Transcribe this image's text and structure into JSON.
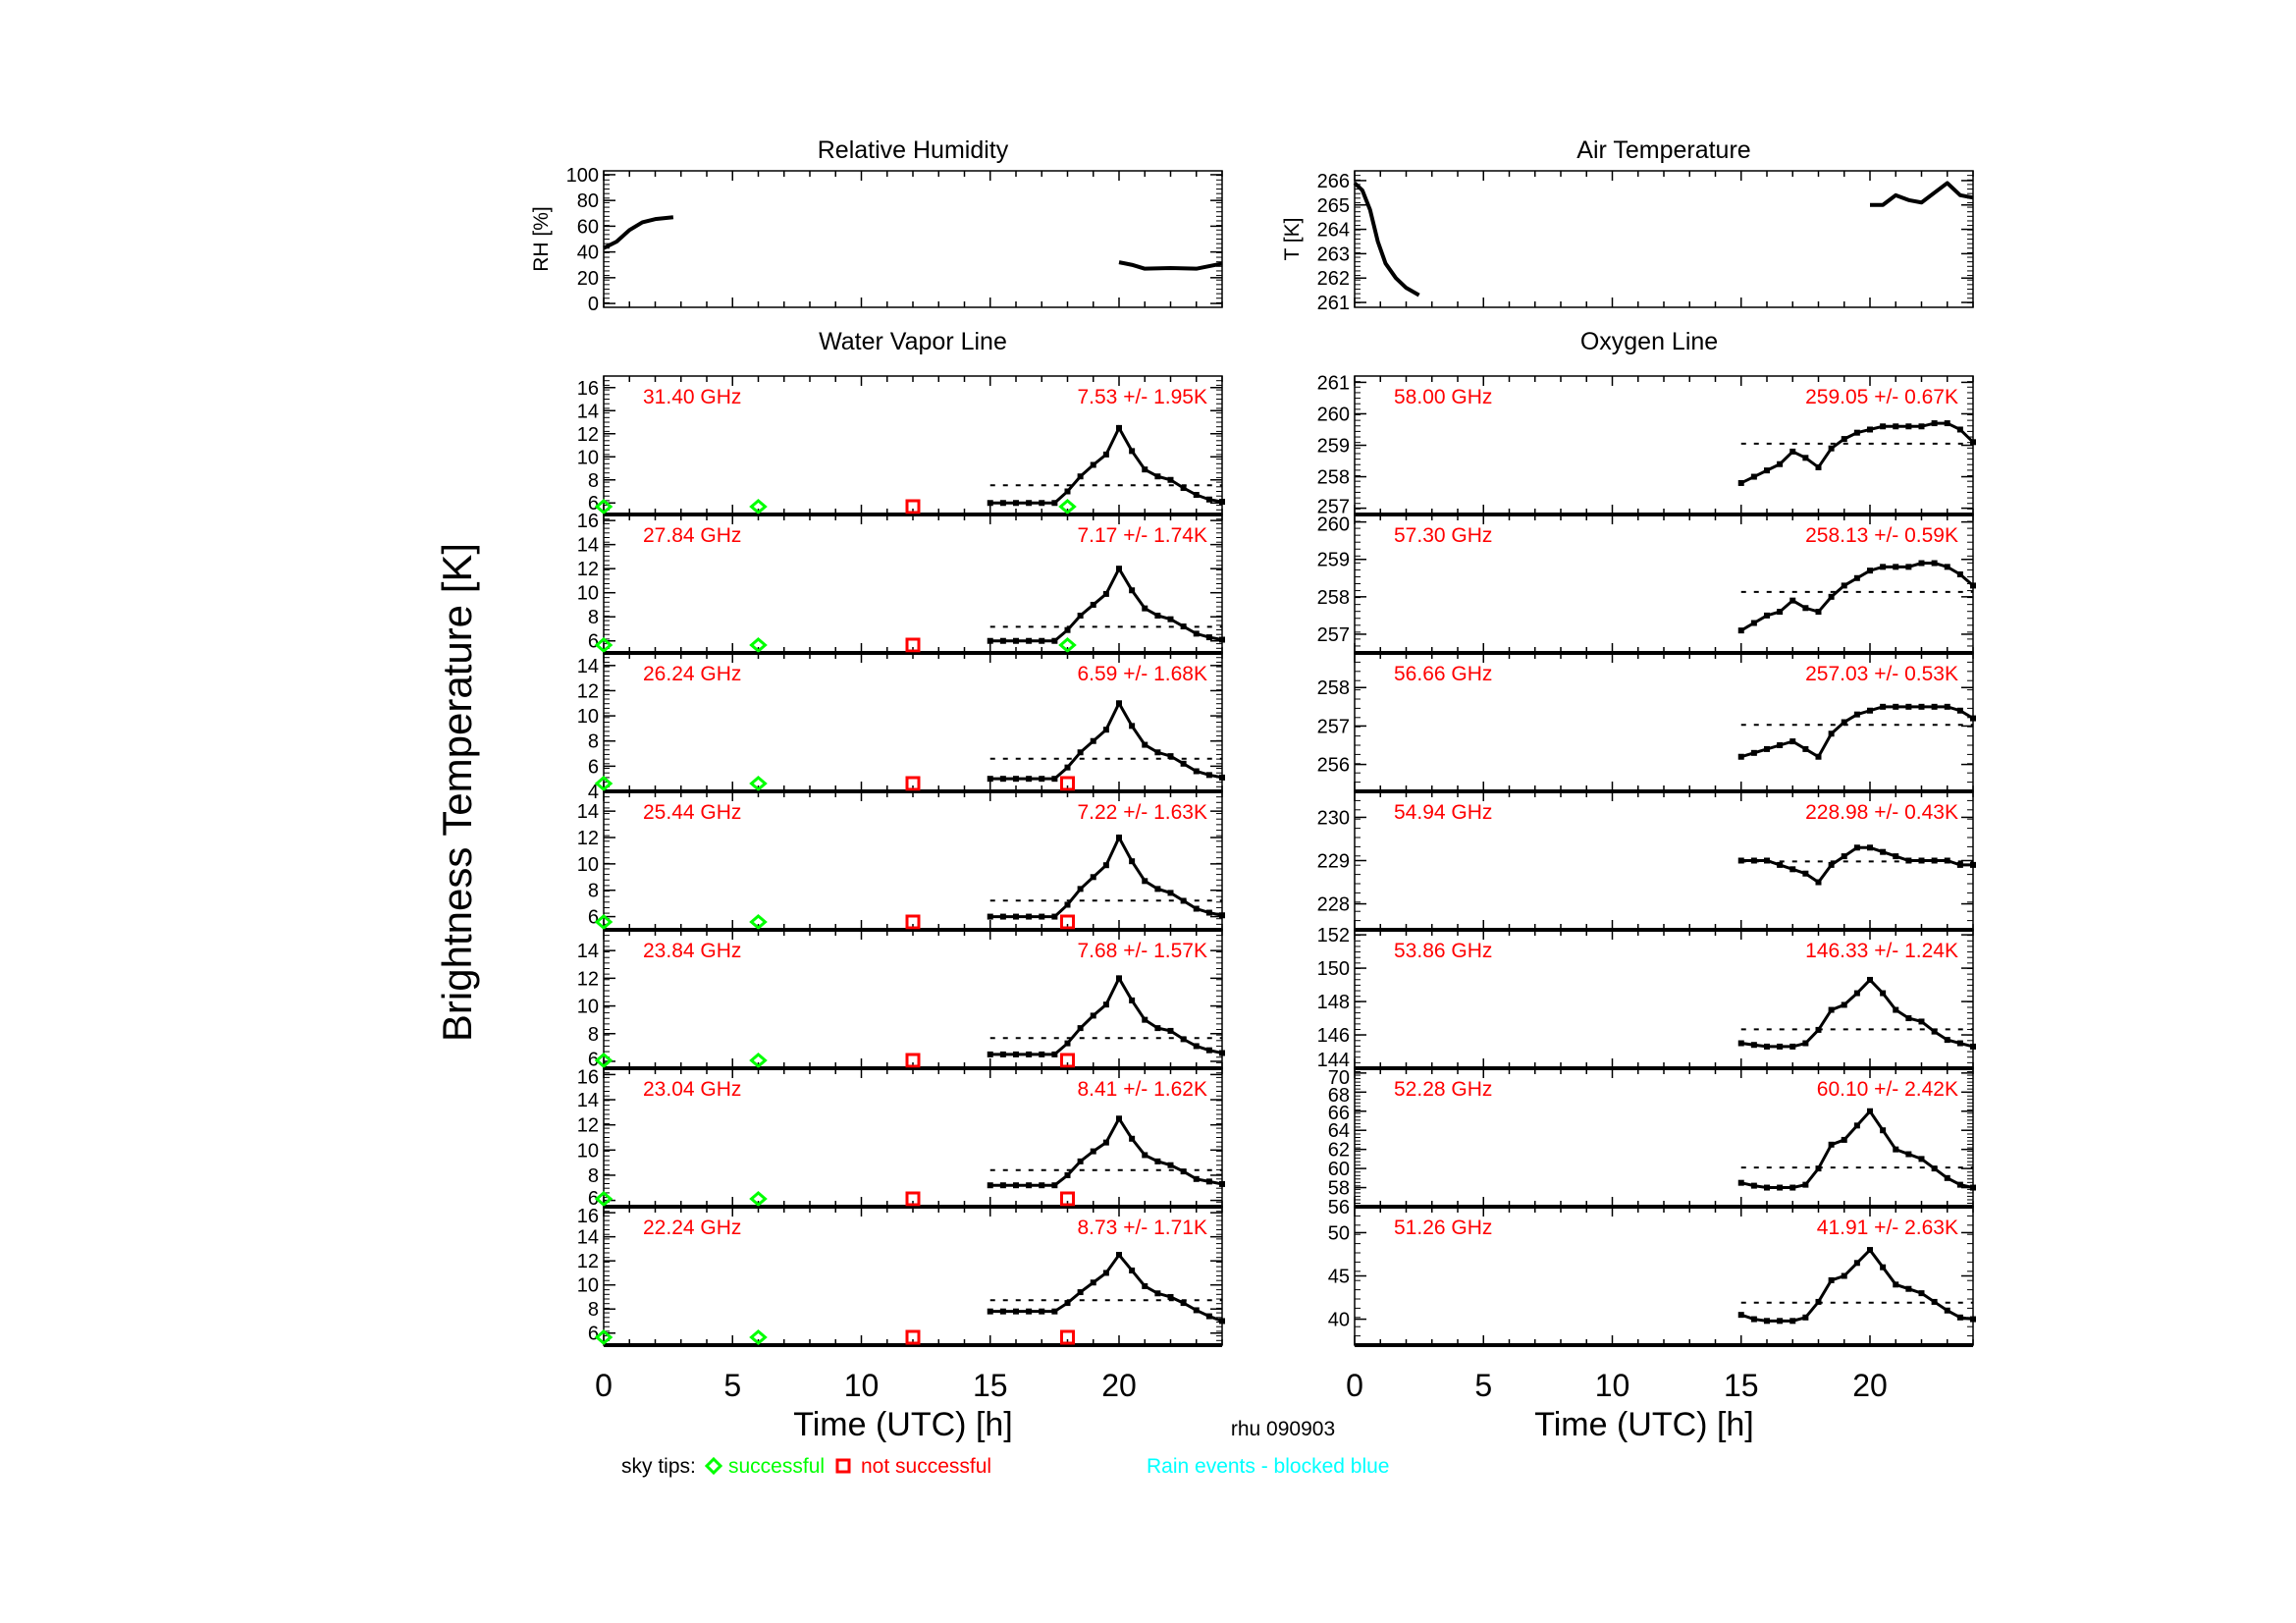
{
  "colors": {
    "axis": "#000000",
    "label": "#ff0000",
    "success": "#00ff00",
    "fail": "#ff0000",
    "rain": "#00ffff"
  },
  "y_main_label": "Brightness Temperature [K]",
  "station": "rhu 090903",
  "legend": {
    "prefix": "sky tips:",
    "success": "successful",
    "fail": "not successful",
    "rain": "Rain events - blocked blue"
  },
  "chart_data": [
    {
      "type": "line",
      "title": "Relative Humidity",
      "ylabel": "RH [%]",
      "ylim": [
        -3,
        103
      ],
      "xlim": [
        0,
        24
      ],
      "yticks": [
        "0",
        "20",
        "40",
        "60",
        "80",
        "100"
      ],
      "segments": [
        [
          [
            0,
            43
          ],
          [
            0.5,
            48
          ],
          [
            1,
            57
          ],
          [
            1.5,
            63
          ],
          [
            2,
            65.5
          ],
          [
            2.7,
            67
          ]
        ],
        [
          [
            20,
            32
          ],
          [
            20.5,
            30
          ],
          [
            21,
            27
          ],
          [
            22,
            27.5
          ],
          [
            23,
            27
          ],
          [
            24,
            31
          ]
        ]
      ]
    },
    {
      "type": "line",
      "title": "Air Temperature",
      "ylabel": "T [K]",
      "ylim": [
        260.8,
        266.4
      ],
      "xlim": [
        0,
        24
      ],
      "yticks": [
        "261",
        "262",
        "263",
        "264",
        "265",
        "266"
      ],
      "segments": [
        [
          [
            0,
            265.9
          ],
          [
            0.3,
            265.6
          ],
          [
            0.6,
            264.8
          ],
          [
            0.9,
            263.5
          ],
          [
            1.2,
            262.6
          ],
          [
            1.6,
            262
          ],
          [
            2,
            261.6
          ],
          [
            2.5,
            261.3
          ]
        ],
        [
          [
            20,
            265
          ],
          [
            20.5,
            265
          ],
          [
            21,
            265.4
          ],
          [
            21.5,
            265.2
          ],
          [
            22,
            265.1
          ],
          [
            22.5,
            265.5
          ],
          [
            23,
            265.9
          ],
          [
            23.5,
            265.4
          ],
          [
            24,
            265.3
          ]
        ]
      ]
    },
    {
      "type": "scatter",
      "title": "Water Vapor Line",
      "xlabel": "Time (UTC) [h]",
      "xlim": [
        0,
        24
      ],
      "xticks": [
        "0",
        "5",
        "10",
        "15",
        "20"
      ],
      "x": [
        15,
        15.5,
        16,
        16.5,
        17,
        17.5,
        18,
        18.5,
        19,
        19.5,
        20,
        20.5,
        21,
        21.5,
        22,
        22.5,
        23,
        23.5,
        24
      ],
      "panels": [
        {
          "freq": "31.40 GHz",
          "stat": "7.53 +/-  1.95K",
          "mean": 7.53,
          "ylim": [
            5,
            17
          ],
          "yticks": [
            "6",
            "8",
            "10",
            "12",
            "14",
            "16"
          ],
          "y": [
            6,
            6,
            6,
            6,
            6,
            6,
            7,
            8.3,
            9.3,
            10.2,
            12.5,
            10.5,
            8.9,
            8.3,
            8,
            7.3,
            6.7,
            6.3,
            6.1
          ],
          "tips": [
            [
              0,
              "ok"
            ],
            [
              6,
              "ok"
            ],
            [
              12,
              "fail"
            ],
            [
              18,
              "ok"
            ]
          ]
        },
        {
          "freq": "27.84 GHz",
          "stat": "7.17 +/-  1.74K",
          "mean": 7.17,
          "ylim": [
            5,
            16.5
          ],
          "yticks": [
            "6",
            "8",
            "10",
            "12",
            "14",
            "16"
          ],
          "y": [
            6,
            6,
            6,
            6,
            6,
            6,
            6.9,
            8.1,
            9,
            9.9,
            12,
            10.2,
            8.7,
            8.1,
            7.8,
            7.2,
            6.6,
            6.3,
            6.1
          ],
          "tips": [
            [
              0,
              "ok"
            ],
            [
              6,
              "ok"
            ],
            [
              12,
              "fail"
            ],
            [
              18,
              "ok"
            ]
          ]
        },
        {
          "freq": "26.24 GHz",
          "stat": "6.59 +/-  1.68K",
          "mean": 6.59,
          "ylim": [
            4,
            15
          ],
          "yticks": [
            "4",
            "6",
            "8",
            "10",
            "12",
            "14"
          ],
          "y": [
            5,
            5,
            5,
            5,
            5,
            5,
            5.9,
            7.1,
            8,
            8.9,
            11,
            9.2,
            7.7,
            7.1,
            6.8,
            6.2,
            5.6,
            5.3,
            5.1
          ],
          "tips": [
            [
              0,
              "ok"
            ],
            [
              6,
              "ok"
            ],
            [
              12,
              "fail"
            ],
            [
              18,
              "fail"
            ]
          ]
        },
        {
          "freq": "25.44 GHz",
          "stat": "7.22 +/-  1.63K",
          "mean": 7.22,
          "ylim": [
            5,
            15.5
          ],
          "yticks": [
            "6",
            "8",
            "10",
            "12",
            "14"
          ],
          "y": [
            6,
            6,
            6,
            6,
            6,
            6,
            6.9,
            8.1,
            9,
            9.9,
            12,
            10.2,
            8.7,
            8.1,
            7.8,
            7.2,
            6.6,
            6.3,
            6.1
          ],
          "tips": [
            [
              0,
              "ok"
            ],
            [
              6,
              "ok"
            ],
            [
              12,
              "fail"
            ],
            [
              18,
              "fail"
            ]
          ]
        },
        {
          "freq": "23.84 GHz",
          "stat": "7.68 +/-  1.57K",
          "mean": 7.68,
          "ylim": [
            5.5,
            15.5
          ],
          "yticks": [
            "6",
            "8",
            "10",
            "12",
            "14"
          ],
          "y": [
            6.5,
            6.5,
            6.5,
            6.5,
            6.5,
            6.5,
            7.3,
            8.4,
            9.3,
            10.1,
            12,
            10.4,
            9,
            8.4,
            8.2,
            7.6,
            7.1,
            6.8,
            6.6
          ],
          "tips": [
            [
              0,
              "ok"
            ],
            [
              6,
              "ok"
            ],
            [
              12,
              "fail"
            ],
            [
              18,
              "fail"
            ]
          ]
        },
        {
          "freq": "23.04 GHz",
          "stat": "8.41 +/-  1.62K",
          "mean": 8.41,
          "ylim": [
            5.5,
            16.5
          ],
          "yticks": [
            "6",
            "8",
            "10",
            "12",
            "14",
            "16"
          ],
          "y": [
            7.2,
            7.2,
            7.2,
            7.2,
            7.2,
            7.2,
            8,
            9.1,
            9.9,
            10.6,
            12.5,
            10.9,
            9.6,
            9.1,
            8.8,
            8.3,
            7.7,
            7.5,
            7.3
          ],
          "tips": [
            [
              0,
              "ok"
            ],
            [
              6,
              "ok"
            ],
            [
              12,
              "fail"
            ],
            [
              18,
              "fail"
            ]
          ]
        },
        {
          "freq": "22.24 GHz",
          "stat": "8.73 +/-  1.71K",
          "mean": 8.73,
          "ylim": [
            5,
            16.5
          ],
          "yticks": [
            "6",
            "8",
            "10",
            "12",
            "14",
            "16"
          ],
          "y": [
            7.8,
            7.8,
            7.8,
            7.8,
            7.8,
            7.8,
            8.5,
            9.4,
            10.2,
            11,
            12.5,
            11.2,
            9.9,
            9.3,
            9,
            8.5,
            7.9,
            7.4,
            7
          ],
          "tips": [
            [
              0,
              "ok"
            ],
            [
              6,
              "ok"
            ],
            [
              12,
              "fail"
            ],
            [
              18,
              "fail"
            ]
          ]
        }
      ]
    },
    {
      "type": "scatter",
      "title": "Oxygen Line",
      "xlabel": "Time (UTC) [h]",
      "xlim": [
        0,
        24
      ],
      "xticks": [
        "0",
        "5",
        "10",
        "15",
        "20"
      ],
      "x": [
        15,
        15.5,
        16,
        16.5,
        17,
        17.5,
        18,
        18.5,
        19,
        19.5,
        20,
        20.5,
        21,
        21.5,
        22,
        22.5,
        23,
        23.5,
        24
      ],
      "panels": [
        {
          "freq": "58.00 GHz",
          "stat": "259.05 +/-  0.67K",
          "mean": 259.05,
          "ylim": [
            256.8,
            261.2
          ],
          "yticks": [
            "257",
            "258",
            "259",
            "260",
            "261"
          ],
          "y": [
            257.8,
            258,
            258.2,
            258.4,
            258.8,
            258.6,
            258.3,
            258.9,
            259.2,
            259.4,
            259.5,
            259.6,
            259.6,
            259.6,
            259.6,
            259.7,
            259.7,
            259.5,
            259.1
          ]
        },
        {
          "freq": "57.30 GHz",
          "stat": "258.13 +/-  0.59K",
          "mean": 258.13,
          "ylim": [
            256.5,
            260.2
          ],
          "yticks": [
            "257",
            "258",
            "259",
            "260"
          ],
          "y": [
            257.1,
            257.3,
            257.5,
            257.6,
            257.9,
            257.7,
            257.6,
            258,
            258.3,
            258.5,
            258.7,
            258.8,
            258.8,
            258.8,
            258.9,
            258.9,
            258.8,
            258.6,
            258.3
          ]
        },
        {
          "freq": "56.66 GHz",
          "stat": "257.03 +/-  0.53K",
          "mean": 257.03,
          "ylim": [
            255.3,
            258.9
          ],
          "yticks": [
            "256",
            "257",
            "258"
          ],
          "y": [
            256.2,
            256.3,
            256.4,
            256.5,
            256.6,
            256.4,
            256.2,
            256.8,
            257.1,
            257.3,
            257.4,
            257.5,
            257.5,
            257.5,
            257.5,
            257.5,
            257.5,
            257.4,
            257.2
          ]
        },
        {
          "freq": "54.94 GHz",
          "stat": "228.98 +/-  0.43K",
          "mean": 228.98,
          "ylim": [
            227.4,
            230.6
          ],
          "yticks": [
            "228",
            "229",
            "230"
          ],
          "y": [
            229,
            229,
            229,
            228.9,
            228.8,
            228.7,
            228.5,
            228.9,
            229.1,
            229.3,
            229.3,
            229.2,
            229.1,
            229,
            229,
            229,
            229,
            228.9,
            228.9
          ]
        },
        {
          "freq": "53.86 GHz",
          "stat": "146.33 +/-  1.24K",
          "mean": 146.33,
          "ylim": [
            144,
            152.3
          ],
          "yticks": [
            "144",
            "146",
            "148",
            "150",
            "152"
          ],
          "y": [
            145.5,
            145.4,
            145.3,
            145.3,
            145.3,
            145.5,
            146.3,
            147.5,
            147.8,
            148.5,
            149.3,
            148.5,
            147.5,
            147,
            146.8,
            146.2,
            145.7,
            145.5,
            145.3
          ]
        },
        {
          "freq": "52.28 GHz",
          "stat": "60.10 +/-  2.42K",
          "mean": 60.1,
          "ylim": [
            56,
            70.5
          ],
          "yticks": [
            "56",
            "58",
            "60",
            "62",
            "64",
            "66",
            "68",
            "70"
          ],
          "y": [
            58.5,
            58.2,
            58,
            58,
            58,
            58.3,
            60,
            62.5,
            63,
            64.5,
            66,
            64,
            62,
            61.5,
            61,
            60,
            59,
            58.3,
            58
          ]
        },
        {
          "freq": "51.26 GHz",
          "stat": "41.91 +/-  2.63K",
          "mean": 41.91,
          "ylim": [
            37,
            53
          ],
          "yticks": [
            "40",
            "45",
            "50"
          ],
          "y": [
            40.5,
            40,
            39.8,
            39.8,
            39.8,
            40.2,
            42,
            44.5,
            45,
            46.5,
            48,
            46,
            44,
            43.5,
            43,
            42,
            41,
            40.2,
            40
          ]
        }
      ]
    }
  ]
}
